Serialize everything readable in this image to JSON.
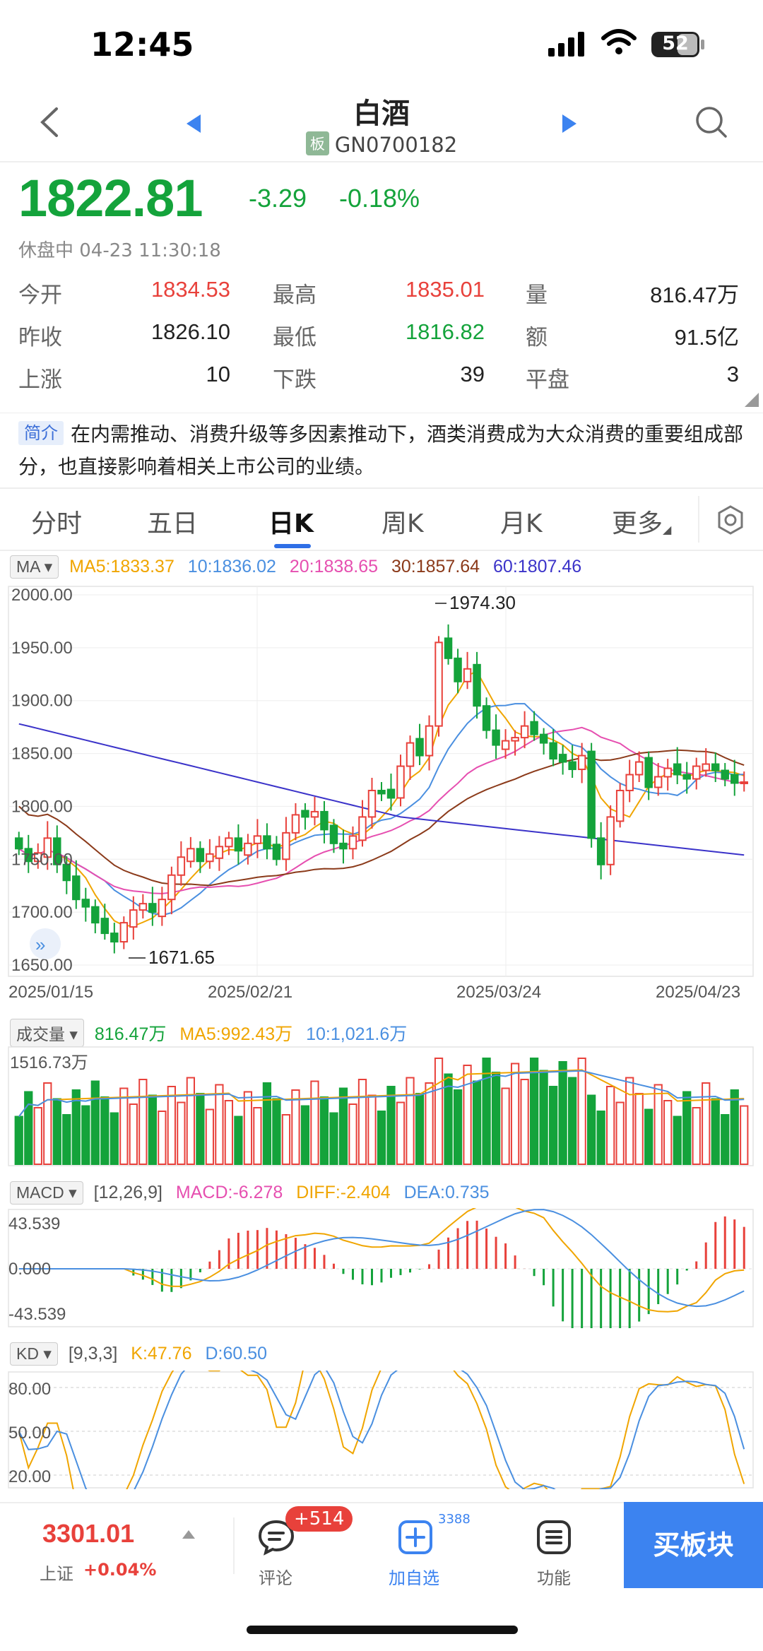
{
  "status_bar": {
    "time": "12:45",
    "battery": "52"
  },
  "header": {
    "title": "白酒",
    "board_tag": "板",
    "code": "GN0700182"
  },
  "quote": {
    "price": "1822.81",
    "change": "-3.29",
    "change_pct": "-0.18%",
    "status": "休盘中 04-23 11:30:18"
  },
  "stats": [
    [
      {
        "label": "今开",
        "value": "1834.53",
        "color": "red"
      },
      {
        "label": "最高",
        "value": "1835.01",
        "color": "red"
      },
      {
        "label": "量",
        "value": "816.47万",
        "color": "dark"
      }
    ],
    [
      {
        "label": "昨收",
        "value": "1826.10",
        "color": "dark"
      },
      {
        "label": "最低",
        "value": "1816.82",
        "color": "green"
      },
      {
        "label": "额",
        "value": "91.5亿",
        "color": "dark"
      }
    ],
    [
      {
        "label": "上涨",
        "value": "10",
        "color": "dark"
      },
      {
        "label": "下跌",
        "value": "39",
        "color": "dark"
      },
      {
        "label": "平盘",
        "value": "3",
        "color": "dark"
      }
    ]
  ],
  "intro": {
    "tag": "简介",
    "text": "在内需推动、消费升级等多因素推动下，酒类消费成为大众消费的重要组成部分，也直接影响着相关上市公司的业绩。"
  },
  "tabs": [
    "分时",
    "五日",
    "日K",
    "周K",
    "月K",
    "更多"
  ],
  "active_tab": "日K",
  "ma": {
    "btn": "MA",
    "ma5": "MA5:1833.37",
    "ma10": "10:1836.02",
    "ma20": "20:1838.65",
    "ma30": "30:1857.64",
    "ma60": "60:1807.46"
  },
  "kline": {
    "y_ticks": [
      "2000.00",
      "1950.00",
      "1900.00",
      "1850.00",
      "1800.00",
      "1750.00",
      "1700.00",
      "1650.00"
    ],
    "high_label": "1974.30",
    "low_label": "1671.65",
    "dates": [
      "2025/01/15",
      "2025/02/21",
      "2025/03/24",
      "2025/04/23"
    ]
  },
  "volume": {
    "btn": "成交量",
    "vol": "816.47万",
    "ma5": "MA5:992.43万",
    "ma10": "10:1,021.6万",
    "max_label": "1516.73万"
  },
  "macd": {
    "btn": "MACD",
    "params": "[12,26,9]",
    "macd": "MACD:-6.278",
    "diff": "DIFF:-2.404",
    "dea": "DEA:0.735",
    "ticks": [
      "43.539",
      "0.000",
      "-43.539"
    ]
  },
  "kd": {
    "btn": "KD",
    "params": "[9,3,3]",
    "k": "K:47.76",
    "d": "D:60.50",
    "ticks": [
      "80.00",
      "50.00",
      "20.00"
    ]
  },
  "bottom": {
    "index_value": "3301.01",
    "index_name": "上证",
    "index_chg": "+0.04%",
    "comment_label": "评论",
    "comment_badge": "+514",
    "watch_label": "加自选",
    "watch_count": "3388",
    "func_label": "功能",
    "buy_label": "买板块"
  },
  "colors": {
    "up": "#e8413b",
    "down": "#14a33b",
    "accent": "#3c83f0",
    "ma5": "#f0a500",
    "ma10": "#4a8fe0",
    "ma20": "#e64fb0",
    "ma30": "#8b3a1a",
    "ma60": "#3b33c9"
  }
}
